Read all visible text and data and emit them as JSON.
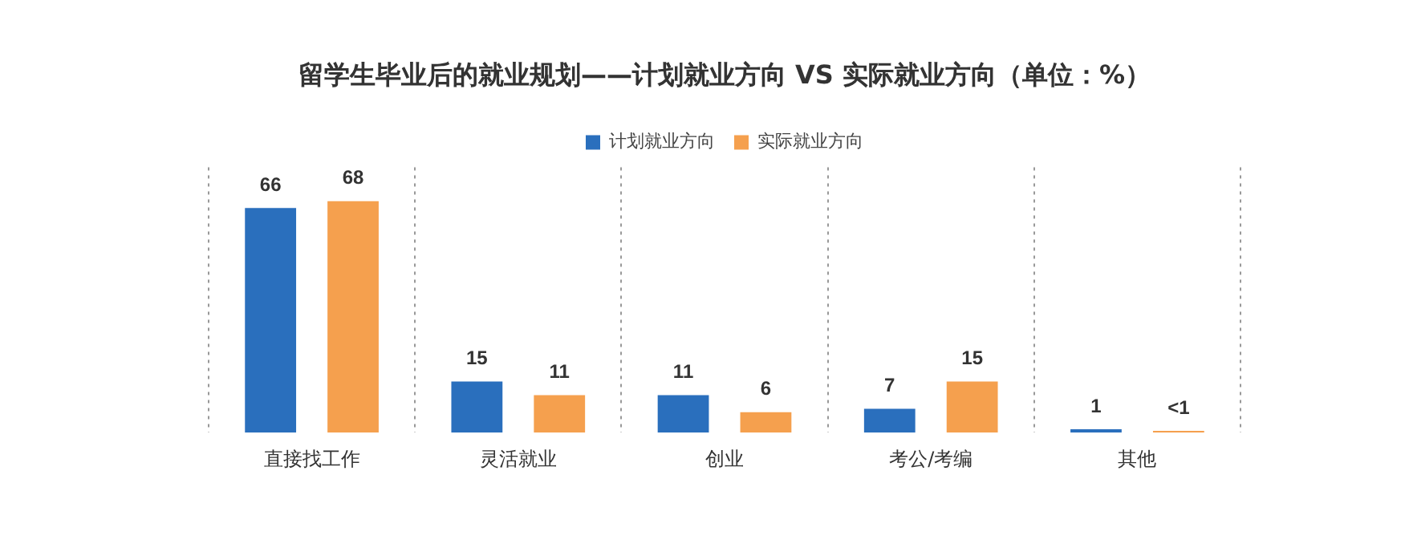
{
  "chart_data": {
    "type": "bar",
    "title": "留学生毕业后的就业规划——计划就业方向 VS 实际就业方向（单位：%）",
    "categories": [
      "直接找工作",
      "灵活就业",
      "创业",
      "考公/考编",
      "其他"
    ],
    "series": [
      {
        "name": "计划就业方向",
        "color": "#2a6fbd",
        "values": [
          66,
          15,
          11,
          7,
          1
        ],
        "value_labels": [
          "66",
          "15",
          "11",
          "7",
          "1"
        ]
      },
      {
        "name": "实际就业方向",
        "color": "#f5a04e",
        "values": [
          68,
          11,
          6,
          15,
          0.5
        ],
        "value_labels": [
          "68",
          "11",
          "6",
          "15",
          "<1"
        ]
      }
    ],
    "grid": "x",
    "legend": "top",
    "tick_labels": "x"
  }
}
